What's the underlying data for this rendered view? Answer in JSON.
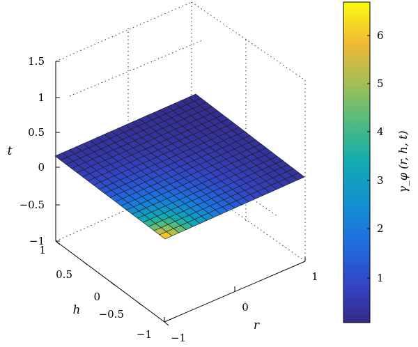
{
  "chart_data": {
    "type": "surface",
    "title": "",
    "axes": {
      "x": {
        "label": "r",
        "range": [
          -1,
          1
        ],
        "ticks": [
          "−1",
          "0",
          "1"
        ]
      },
      "y": {
        "label": "h",
        "range": [
          -1,
          1
        ],
        "ticks": [
          "−1",
          "−0.5",
          "0",
          "0.5",
          "1"
        ]
      },
      "z": {
        "label": "t",
        "range": [
          -1,
          1.5
        ],
        "ticks": [
          "−1",
          "−0.5",
          "0",
          "0.5",
          "1",
          "1.5"
        ]
      }
    },
    "surface": {
      "description_of_shape": "flat plane t ≈ -h/2 over r,h in [-1,1]",
      "grid_size": 21,
      "min_value": 0.1,
      "max_value": 6.7,
      "peak_corner": {
        "r": -1,
        "h": 1
      }
    },
    "colorbar": {
      "label": "γ_φ (r, h, t)",
      "range": [
        0.1,
        6.7
      ],
      "ticks": [
        "1",
        "2",
        "3",
        "4",
        "5",
        "6"
      ],
      "colormap": "parula"
    },
    "grid": true
  }
}
